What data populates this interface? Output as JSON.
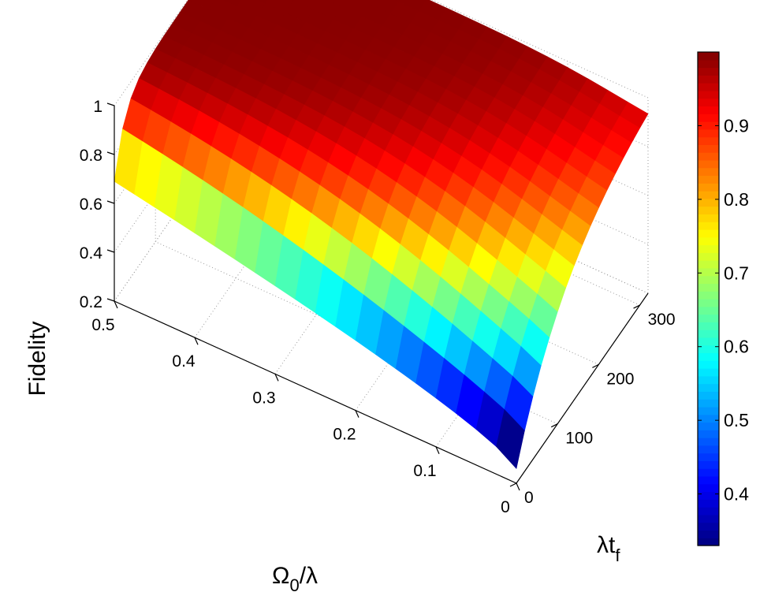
{
  "chart_data": {
    "type": "surface",
    "zlabel": "Fidelity",
    "xlabel": {
      "main": "Ω",
      "sub": "0",
      "rest": "/λ"
    },
    "ylabel": {
      "main": "λt",
      "sub": "f"
    },
    "x_range": [
      0,
      0.5
    ],
    "y_range": [
      0,
      320
    ],
    "z_range": [
      0.2,
      1.0
    ],
    "x_ticks": [
      "0",
      "0.1",
      "0.2",
      "0.3",
      "0.4",
      "0.5"
    ],
    "y_ticks": [
      "0",
      "100",
      "200",
      "300"
    ],
    "z_ticks": [
      "0.2",
      "0.4",
      "0.6",
      "0.8",
      "1"
    ],
    "colormap": "jet",
    "color_range": [
      0.33,
      1.0
    ],
    "colorbar_ticks": [
      "0.4",
      "0.5",
      "0.6",
      "0.7",
      "0.8",
      "0.9"
    ],
    "grid": true,
    "surface_corner_values": {
      "x0_y0": 0.26,
      "x0_y320": 0.99,
      "x0.5_y0": 0.69,
      "x0.5_y320": 0.99
    }
  }
}
